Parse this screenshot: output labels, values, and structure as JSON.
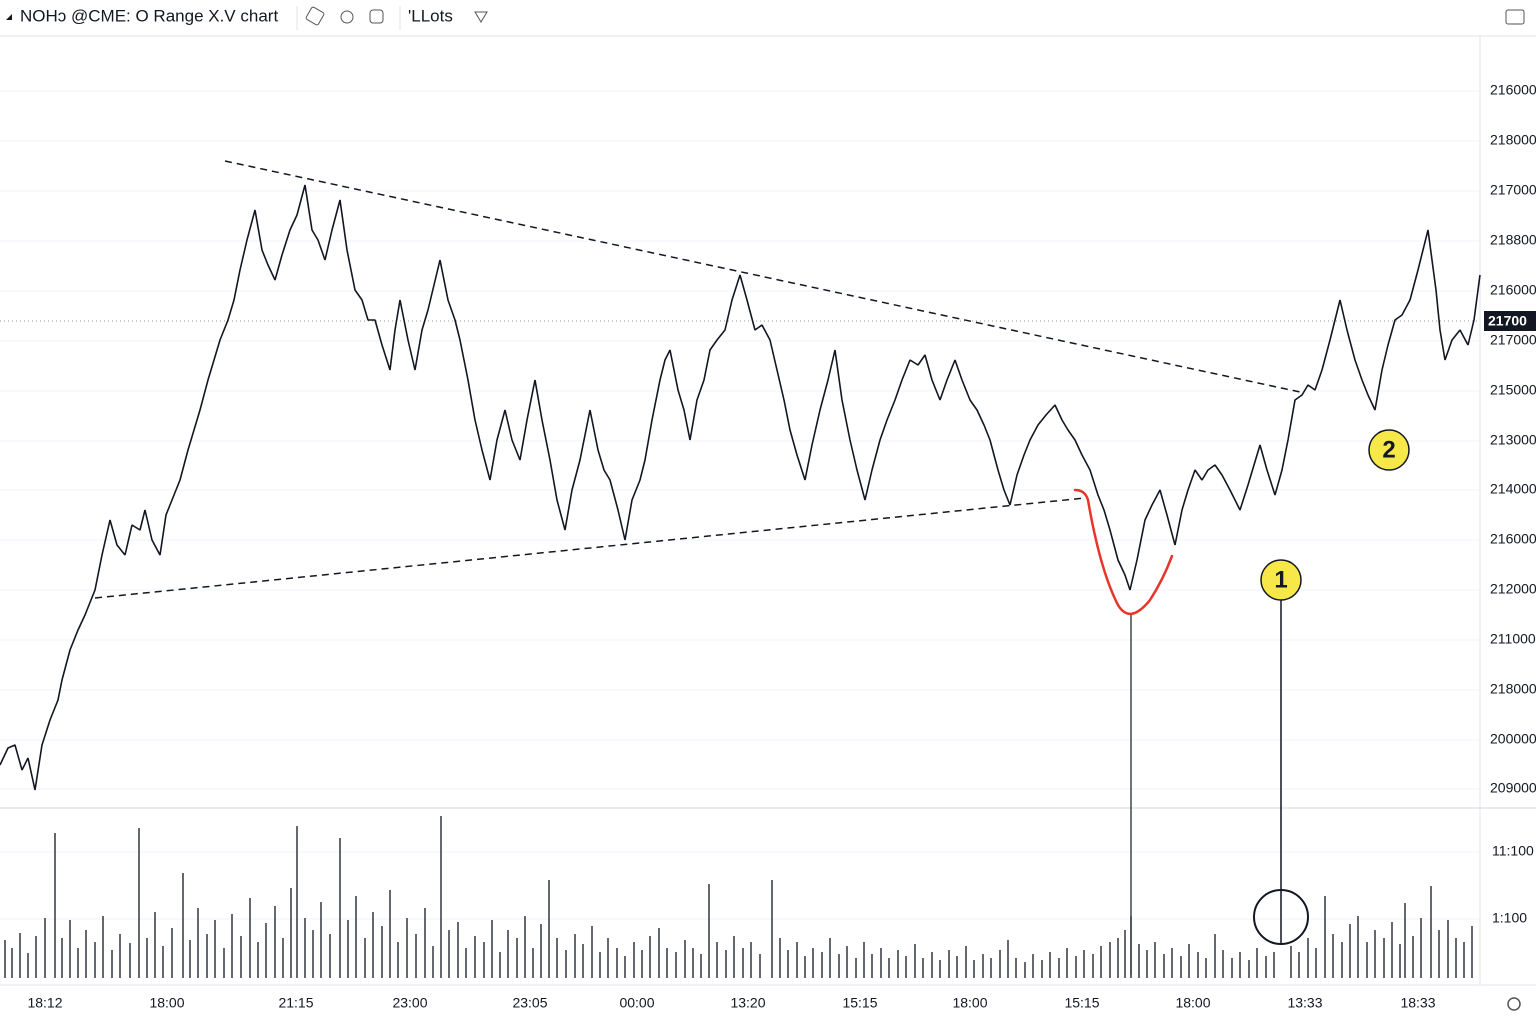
{
  "toolbar": {
    "symbol": "NOHↄ @CME: O Range X.V chart",
    "lots": "'LLots"
  },
  "price_axis_labels": [
    "216000",
    "218000",
    "217000",
    "218800",
    "216000",
    "217000",
    "215000",
    "213000",
    "214000",
    "216000",
    "212000",
    "211000",
    "218000",
    "200000",
    "209000"
  ],
  "current_price": "21700",
  "volume_axis_labels": [
    "11:100",
    "1:100"
  ],
  "time_axis_labels": [
    "18:12",
    "18:00",
    "21:15",
    "23:00",
    "23:05",
    "00:00",
    "13:20",
    "15:15",
    "18:00",
    "15:15",
    "18:00",
    "13:33",
    "18:33"
  ],
  "markers": [
    "1",
    "2"
  ]
}
